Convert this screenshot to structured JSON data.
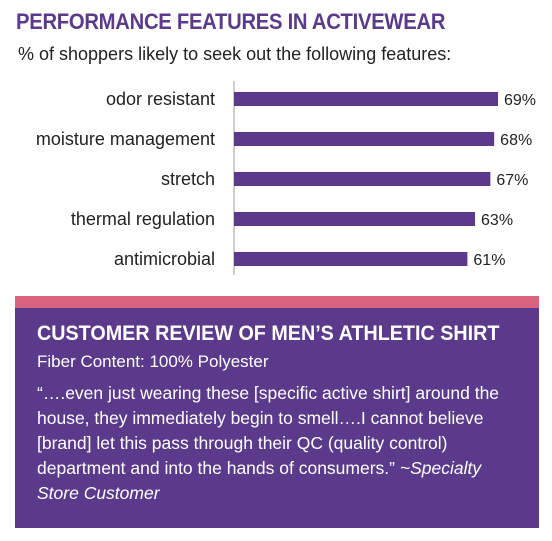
{
  "title": "PERFORMANCE FEATURES IN ACTIVEWEAR",
  "subtitle": "% of shoppers likely to seek out the following features:",
  "colors": {
    "accent": "#5b3a8c",
    "divider": "#d9637e"
  },
  "chart_data": {
    "type": "bar",
    "orientation": "horizontal",
    "categories": [
      "odor resistant",
      "moisture management",
      "stretch",
      "thermal regulation",
      "antimicrobial"
    ],
    "values": [
      69,
      68,
      67,
      63,
      61
    ],
    "data_labels": [
      "69%",
      "68%",
      "67%",
      "63%",
      "61%"
    ],
    "color": "#5b3a8c"
  },
  "review": {
    "title": "CUSTOMER REVIEW OF MEN’S ATHLETIC SHIRT",
    "fiber": "Fiber Content: 100% Polyester",
    "quote": "“….even just wearing these [specific active shirt] around the house, they immediately begin to smell….I cannot believe [brand] let this pass through their QC (quality control) department and into the hands of consumers.”",
    "attribution": "~Specialty Store Customer"
  }
}
